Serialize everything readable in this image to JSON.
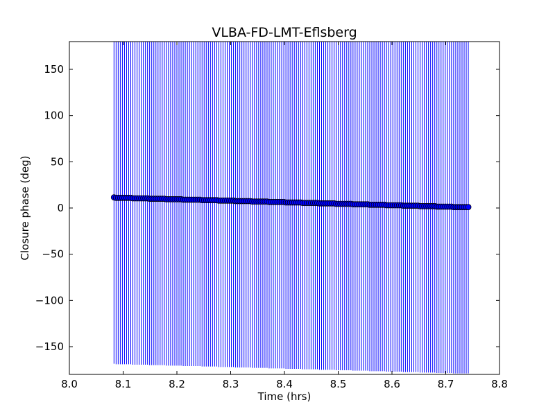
{
  "chart_data": {
    "type": "scatter",
    "title": "VLBA-FD-LMT-Eflsberg",
    "xlabel": "Time (hrs)",
    "ylabel": "Closure phase (deg)",
    "xlim": [
      8.0,
      8.8
    ],
    "ylim": [
      -180,
      180
    ],
    "xticks": [
      8.0,
      8.1,
      8.2,
      8.3,
      8.4,
      8.5,
      8.6,
      8.7,
      8.8
    ],
    "xtick_labels": [
      "8.0",
      "8.1",
      "8.2",
      "8.3",
      "8.4",
      "8.5",
      "8.6",
      "8.7",
      "8.8"
    ],
    "yticks": [
      150,
      100,
      50,
      0,
      -50,
      -100,
      -150
    ],
    "ytick_labels": [
      "150",
      "100",
      "50",
      "0",
      "−50",
      "−100",
      "−150"
    ],
    "series": [
      {
        "name": "closure phase",
        "x_start": 8.083,
        "x_end": 8.742,
        "count": 170,
        "y_start": 11.3,
        "y_end": 0.8,
        "yerr": 180
      }
    ],
    "colors": {
      "marker": "#0000ff",
      "errorbar": "#0000ff",
      "edge": "#000000"
    },
    "grid": false
  }
}
